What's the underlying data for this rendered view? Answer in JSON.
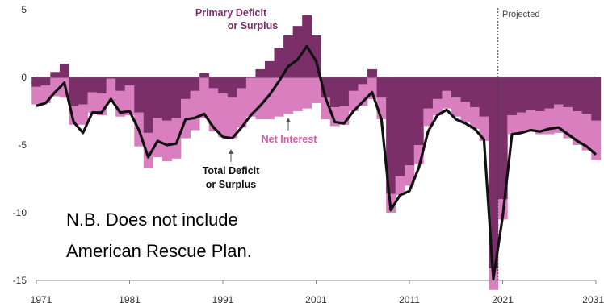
{
  "chart_data": {
    "type": "bar",
    "x": [
      1971,
      1972,
      1973,
      1974,
      1975,
      1976,
      1977,
      1978,
      1979,
      1980,
      1981,
      1982,
      1983,
      1984,
      1985,
      1986,
      1987,
      1988,
      1989,
      1990,
      1991,
      1992,
      1993,
      1994,
      1995,
      1996,
      1997,
      1998,
      1999,
      2000,
      2001,
      2002,
      2003,
      2004,
      2005,
      2006,
      2007,
      2008,
      2009,
      2010,
      2011,
      2012,
      2013,
      2014,
      2015,
      2016,
      2017,
      2018,
      2019,
      2020,
      2021,
      2022,
      2023,
      2024,
      2025,
      2026,
      2027,
      2028,
      2029,
      2030,
      2031
    ],
    "series": [
      {
        "name": "Primary Deficit or Surplus",
        "values": [
          -0.7,
          -0.6,
          0.4,
          1.0,
          -2.1,
          -2.0,
          -1.1,
          -1.2,
          -0.1,
          -1.0,
          -0.6,
          -2.6,
          -4.1,
          -3.0,
          -3.2,
          -3.0,
          -1.6,
          -1.0,
          0.3,
          -0.8,
          -1.2,
          -1.5,
          -0.8,
          0.0,
          0.6,
          1.2,
          2.2,
          3.1,
          3.8,
          4.6,
          3.1,
          -1.5,
          -2.2,
          -2.1,
          -1.0,
          -0.5,
          0.6,
          -1.5,
          -8.6,
          -7.3,
          -6.5,
          -5.0,
          -2.3,
          -1.6,
          -1.0,
          -1.5,
          -1.8,
          -2.2,
          -2.9,
          -14.1,
          -9.0,
          -2.8,
          -2.6,
          -2.4,
          -2.5,
          -2.3,
          -2.0,
          -2.2,
          -2.5,
          -2.7,
          -3.2
        ],
        "color": "#7a2f68"
      },
      {
        "name": "Net Interest",
        "values": [
          -1.3,
          -1.3,
          -1.4,
          -1.5,
          -1.4,
          -1.5,
          -1.5,
          -1.6,
          -1.7,
          -1.9,
          -2.2,
          -2.5,
          -2.6,
          -2.9,
          -3.0,
          -3.0,
          -2.9,
          -2.9,
          -3.0,
          -3.2,
          -3.2,
          -3.0,
          -2.9,
          -2.9,
          -3.1,
          -3.1,
          -2.9,
          -2.7,
          -2.5,
          -2.3,
          -1.9,
          -1.6,
          -1.4,
          -1.4,
          -1.5,
          -1.6,
          -1.6,
          -1.6,
          -1.4,
          -1.4,
          -1.5,
          -1.4,
          -1.3,
          -1.2,
          -1.3,
          -1.4,
          -1.5,
          -1.6,
          -1.8,
          -1.6,
          -1.5,
          -1.4,
          -1.5,
          -1.6,
          -1.7,
          -1.9,
          -2.1,
          -2.3,
          -2.5,
          -2.7,
          -2.9
        ],
        "color": "#d97fbf"
      },
      {
        "name": "Total Deficit or Surplus",
        "values": [
          -2.1,
          -1.9,
          -1.1,
          -0.4,
          -3.3,
          -4.1,
          -2.6,
          -2.6,
          -1.6,
          -2.6,
          -2.5,
          -3.9,
          -5.9,
          -4.7,
          -5.0,
          -4.9,
          -3.1,
          -3.0,
          -2.7,
          -3.7,
          -4.4,
          -4.5,
          -3.7,
          -2.8,
          -2.1,
          -1.3,
          -0.3,
          0.8,
          1.3,
          2.3,
          1.2,
          -1.5,
          -3.3,
          -3.4,
          -2.5,
          -1.8,
          -1.1,
          -3.1,
          -9.8,
          -8.7,
          -8.4,
          -6.7,
          -4.0,
          -2.8,
          -2.4,
          -3.1,
          -3.4,
          -3.8,
          -4.6,
          -14.9,
          -10.3,
          -4.2,
          -4.1,
          -3.9,
          -4.0,
          -3.8,
          -3.7,
          -4.2,
          -4.7,
          -5.1,
          -5.7
        ],
        "color": "#111111"
      }
    ],
    "ylim": [
      -15,
      5
    ],
    "yticks": [
      5,
      0,
      -5,
      -10,
      -15
    ],
    "xticks": [
      1971,
      1981,
      1991,
      2001,
      2011,
      2021,
      2031
    ],
    "annotations": {
      "primary": [
        "Primary Deficit",
        "or Surplus"
      ],
      "net_interest": "Net Interest",
      "total": [
        "Total Deficit",
        "or Surplus"
      ],
      "projected": "Projected"
    },
    "note": [
      "N.B.  Does not include",
      "American Rescue Plan."
    ],
    "grid": false,
    "colors": {
      "primary": "#7a2f68",
      "net_interest": "#d97fbf",
      "total": "#111111",
      "primary_label": "#7a2f68",
      "net_interest_label": "#d95aa8"
    }
  }
}
